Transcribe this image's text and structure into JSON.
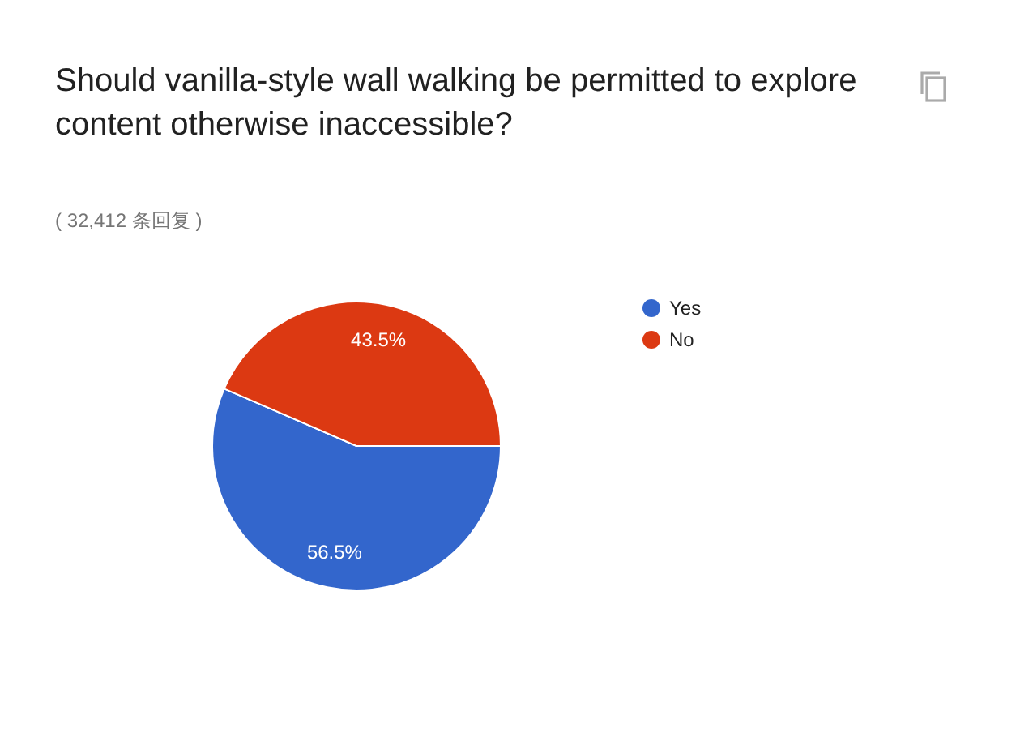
{
  "chart_data": {
    "type": "pie",
    "title": "Should vanilla-style wall walking be permitted to explore content otherwise inaccessible?",
    "subtitle": "( 32,412 条回复 )",
    "categories": [
      "Yes",
      "No"
    ],
    "values": [
      56.5,
      43.5
    ],
    "colors": [
      "#3366cc",
      "#dc3912"
    ],
    "value_labels": [
      "56.5%",
      "43.5%"
    ],
    "legend": "top right"
  }
}
